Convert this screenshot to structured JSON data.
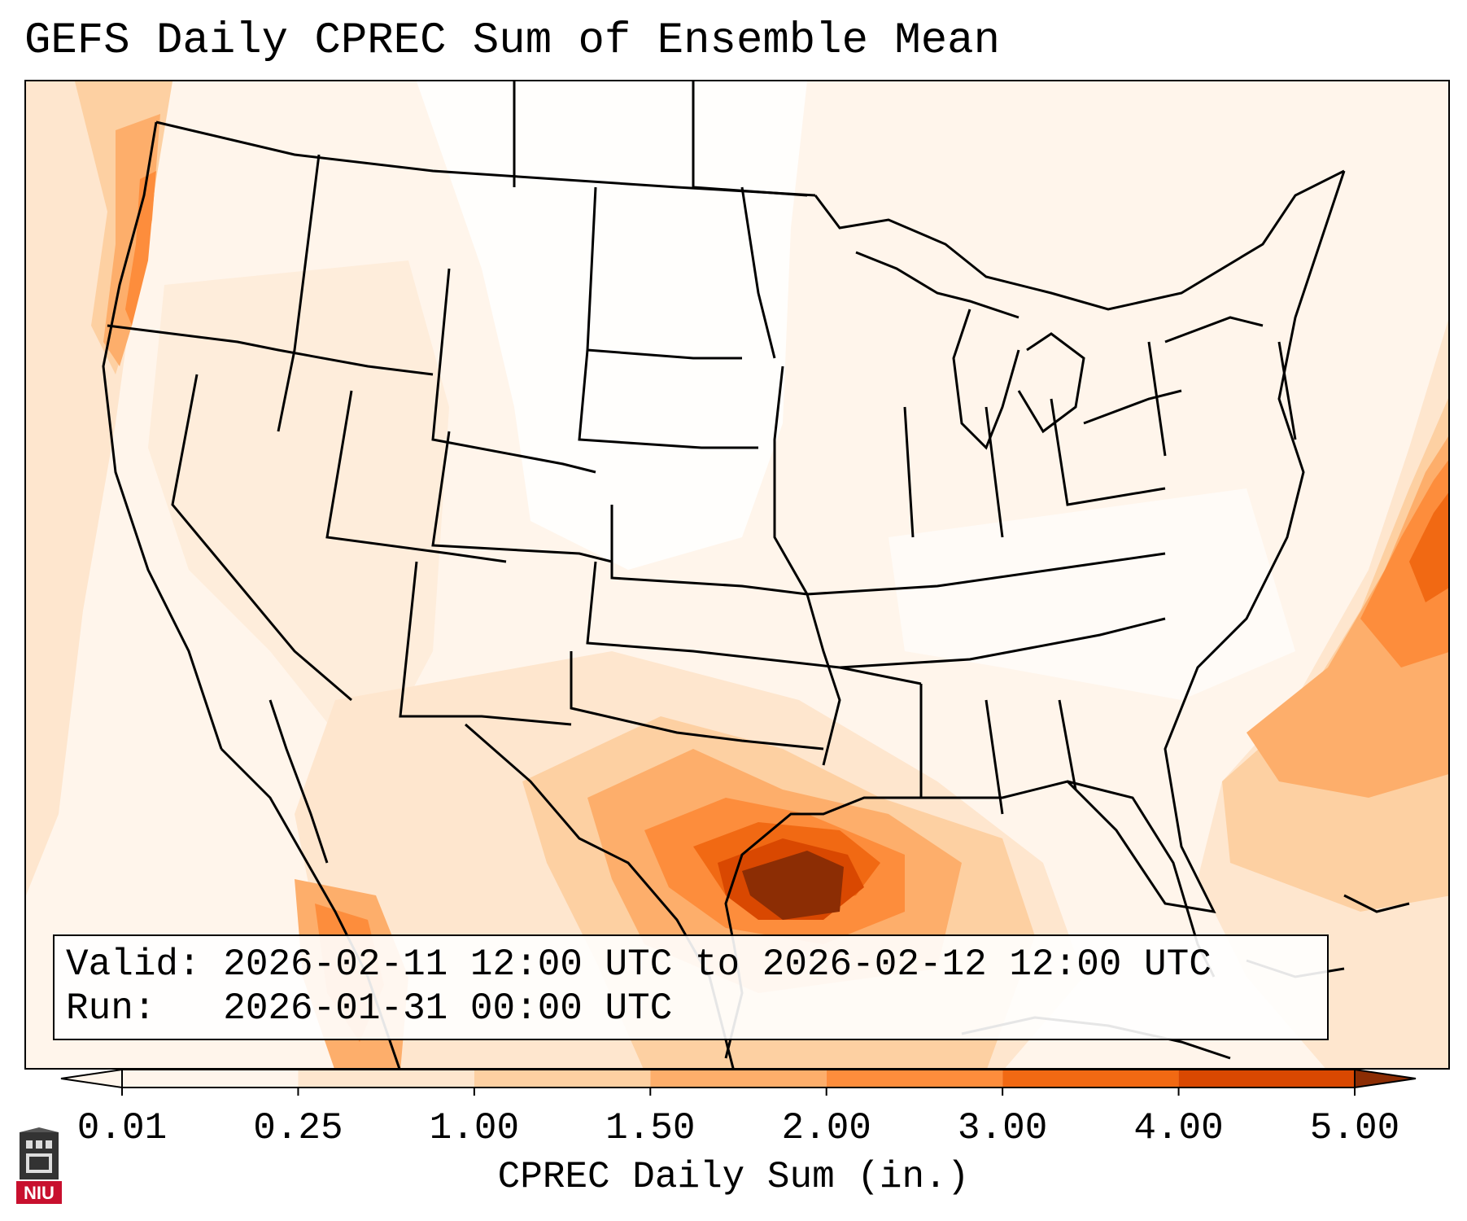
{
  "title": "GEFS Daily CPREC Sum of Ensemble Mean",
  "info": {
    "valid_line": "Valid: 2026-02-11 12:00 UTC to 2026-02-12 12:00 UTC",
    "run_line": "Run:   2026-01-31 00:00 UTC"
  },
  "colorbar": {
    "label": "CPREC Daily Sum (in.)",
    "ticks": [
      "0.01",
      "0.25",
      "1.00",
      "1.50",
      "2.00",
      "3.00",
      "4.00",
      "5.00"
    ],
    "colors": [
      "#fff5eb",
      "#fee6ce",
      "#fdd0a2",
      "#fdae6b",
      "#fd8d3c",
      "#f16913",
      "#d94801",
      "#8c2d04"
    ]
  },
  "logo": {
    "text": "NIU"
  }
}
